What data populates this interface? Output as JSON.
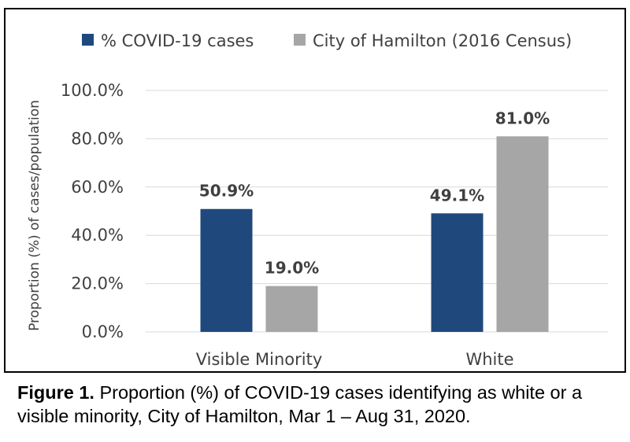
{
  "chart_data": {
    "type": "bar",
    "categories": [
      "Visible Minority",
      "White"
    ],
    "series": [
      {
        "name": "% COVID-19 cases",
        "values": [
          50.9,
          49.1
        ],
        "labels": [
          "50.9%",
          "49.1%"
        ],
        "color": "#1f497d"
      },
      {
        "name": "City of Hamilton (2016 Census)",
        "values": [
          19.0,
          81.0
        ],
        "labels": [
          "19.0%",
          "81.0%"
        ],
        "color": "#a6a6a6"
      }
    ],
    "ylabel": "Proportion (%) of cases/population",
    "xlabel": "",
    "ylim": [
      0,
      100
    ],
    "yticks": [
      0,
      20,
      40,
      60,
      80,
      100
    ],
    "ytick_labels": [
      "0.0%",
      "20.0%",
      "40.0%",
      "60.0%",
      "80.0%",
      "100.0%"
    ],
    "grid": true,
    "grid_color": "#d9d9d9",
    "legend_position": "top"
  },
  "caption": {
    "label": "Figure 1.",
    "text": " Proportion (%) of COVID-19 cases identifying as white or a visible minority, City of Hamilton, Mar 1 – Aug 31, 2020."
  }
}
